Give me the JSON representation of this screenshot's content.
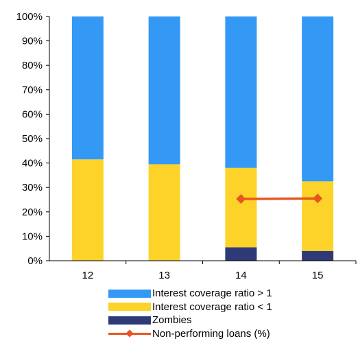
{
  "chart_data": {
    "type": "bar",
    "stacked": true,
    "categories": [
      "12",
      "13",
      "14",
      "15"
    ],
    "ylim": [
      0,
      100
    ],
    "yticks": [
      "0%",
      "10%",
      "20%",
      "30%",
      "40%",
      "50%",
      "60%",
      "70%",
      "80%",
      "90%",
      "100%"
    ],
    "grid": false,
    "legend_position": "bottom",
    "series": [
      {
        "name": "Zombies",
        "type": "bar",
        "color": "#2e3a75",
        "values": [
          0,
          0,
          5.5,
          4
        ]
      },
      {
        "name": "Interest coverage ratio < 1",
        "type": "bar",
        "color": "#fdd32a",
        "values": [
          41.5,
          39.5,
          32.5,
          28.5
        ]
      },
      {
        "name": "Interest coverage ratio > 1",
        "type": "bar",
        "color": "#3399f5",
        "values": [
          58.5,
          60.5,
          62,
          67.5
        ]
      },
      {
        "name": "Non-performing loans (%)",
        "type": "line",
        "color": "#e8561f",
        "values": [
          null,
          null,
          25.3,
          25.5
        ]
      }
    ]
  },
  "legend": [
    {
      "label": "Interest coverage ratio > 1",
      "kind": "bar",
      "color": "#3399f5"
    },
    {
      "label": "Interest coverage ratio < 1",
      "kind": "bar",
      "color": "#fdd32a"
    },
    {
      "label": "Zombies",
      "kind": "bar",
      "color": "#2e3a75"
    },
    {
      "label": "Non-performing loans (%)",
      "kind": "line",
      "color": "#e8561f"
    }
  ]
}
